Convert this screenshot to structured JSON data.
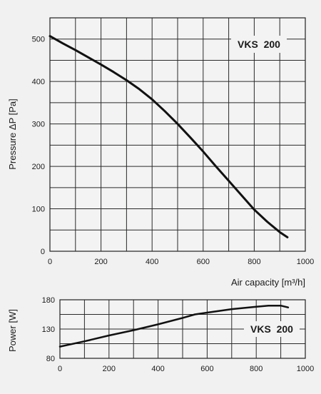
{
  "chart_data": [
    {
      "type": "line",
      "title": "",
      "xlabel": "Air capacity [m³/h]",
      "ylabel": "Pressure ΔP [Pa]",
      "xlim": [
        0,
        1000
      ],
      "ylim": [
        0,
        550
      ],
      "xticks": [
        0,
        200,
        400,
        600,
        800,
        1000
      ],
      "yticks": [
        0,
        100,
        200,
        300,
        400,
        500
      ],
      "x_gridlines": [
        0,
        100,
        200,
        300,
        400,
        500,
        600,
        700,
        800,
        900,
        1000
      ],
      "y_gridlines": [
        0,
        50,
        100,
        150,
        200,
        250,
        300,
        350,
        400,
        450,
        500,
        550
      ],
      "grid": true,
      "annotation": "VKS  200",
      "annotation_position": "top-right",
      "line_color": "#111111",
      "series": [
        {
          "x": [
            0,
            50,
            100,
            150,
            200,
            250,
            300,
            350,
            400,
            450,
            500,
            550,
            600,
            650,
            700,
            750,
            800,
            850,
            900,
            930
          ],
          "y": [
            507,
            490,
            474,
            457,
            440,
            422,
            403,
            382,
            358,
            330,
            300,
            268,
            235,
            200,
            166,
            132,
            98,
            70,
            45,
            33
          ]
        }
      ]
    },
    {
      "type": "line",
      "title": "",
      "xlabel": "",
      "ylabel": "Power [W]",
      "xlim": [
        0,
        1000
      ],
      "ylim": [
        80,
        180
      ],
      "xticks": [
        0,
        200,
        400,
        600,
        800,
        1000
      ],
      "yticks": [
        80,
        130,
        180
      ],
      "x_gridlines": [
        0,
        100,
        200,
        300,
        400,
        500,
        600,
        700,
        800,
        900,
        1000
      ],
      "y_gridlines": [
        80,
        105,
        130,
        155,
        180
      ],
      "grid": true,
      "annotation": "VKS  200",
      "annotation_position": "center-right",
      "line_color": "#111111",
      "series": [
        {
          "x": [
            0,
            100,
            200,
            300,
            400,
            500,
            550,
            600,
            700,
            800,
            850,
            900,
            930
          ],
          "y": [
            100,
            109,
            119,
            128,
            138,
            149,
            155,
            158,
            164,
            168,
            170,
            170,
            167
          ]
        }
      ]
    }
  ]
}
